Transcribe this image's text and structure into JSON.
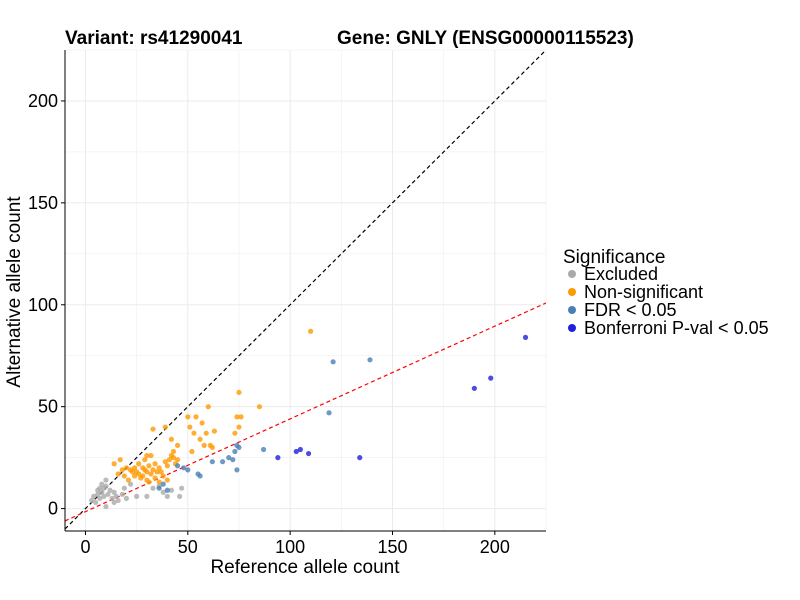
{
  "chart_data": {
    "type": "scatter",
    "title_variant": "Variant: rs41290041",
    "title_gene": "Gene: GNLY (ENSG00000115523)",
    "xlabel": "Reference allele count",
    "ylabel": "Alternative allele count",
    "xlim": [
      -10,
      225
    ],
    "ylim": [
      -11,
      225
    ],
    "xticks": [
      0,
      50,
      100,
      150,
      200
    ],
    "yticks": [
      0,
      50,
      100,
      150,
      200
    ],
    "grid": true,
    "legend_title": "Significance",
    "legend_position": "right",
    "lines": [
      {
        "name": "identity",
        "slope": 1,
        "intercept": 0,
        "color": "#000000",
        "dashed": true
      },
      {
        "name": "fit",
        "slope": 0.455,
        "intercept": -1.5,
        "color": "#ff0000",
        "dashed": true
      }
    ],
    "series": [
      {
        "name": "Excluded",
        "color": "#aaaaaa",
        "points": [
          [
            3,
            4
          ],
          [
            4,
            6
          ],
          [
            5,
            3
          ],
          [
            6,
            7
          ],
          [
            6,
            9
          ],
          [
            7,
            10
          ],
          [
            7,
            5
          ],
          [
            8,
            8
          ],
          [
            8,
            12
          ],
          [
            9,
            10
          ],
          [
            9,
            6
          ],
          [
            10,
            14
          ],
          [
            10,
            1
          ],
          [
            10,
            11
          ],
          [
            11,
            7
          ],
          [
            12,
            9
          ],
          [
            13,
            5
          ],
          [
            14,
            3
          ],
          [
            14,
            8
          ],
          [
            15,
            6
          ],
          [
            16,
            4
          ],
          [
            18,
            7
          ],
          [
            19,
            10
          ],
          [
            20,
            5
          ],
          [
            22,
            12
          ],
          [
            25,
            6
          ],
          [
            30,
            6
          ],
          [
            33,
            10
          ],
          [
            36,
            11
          ],
          [
            38,
            8
          ],
          [
            40,
            6
          ],
          [
            42,
            9
          ],
          [
            46,
            6
          ],
          [
            47,
            10
          ]
        ]
      },
      {
        "name": "Non-significant",
        "color": "#ff9900",
        "points": [
          [
            14,
            22
          ],
          [
            16,
            17
          ],
          [
            17,
            24
          ],
          [
            18,
            19
          ],
          [
            19,
            16
          ],
          [
            20,
            20
          ],
          [
            21,
            14
          ],
          [
            22,
            19
          ],
          [
            23,
            18
          ],
          [
            24,
            16
          ],
          [
            24,
            20
          ],
          [
            25,
            18
          ],
          [
            26,
            17
          ],
          [
            26,
            22
          ],
          [
            27,
            15
          ],
          [
            28,
            16
          ],
          [
            28,
            20
          ],
          [
            29,
            19
          ],
          [
            29,
            24
          ],
          [
            30,
            14
          ],
          [
            30,
            18
          ],
          [
            30,
            26
          ],
          [
            31,
            13
          ],
          [
            31,
            21
          ],
          [
            32,
            17
          ],
          [
            32,
            26
          ],
          [
            33,
            19
          ],
          [
            33,
            39
          ],
          [
            34,
            15
          ],
          [
            34,
            22
          ],
          [
            35,
            18
          ],
          [
            36,
            20
          ],
          [
            36,
            13
          ],
          [
            37,
            18
          ],
          [
            38,
            16
          ],
          [
            39,
            23
          ],
          [
            39,
            40
          ],
          [
            40,
            14
          ],
          [
            40,
            21
          ],
          [
            41,
            24
          ],
          [
            42,
            26
          ],
          [
            42,
            34
          ],
          [
            43,
            25
          ],
          [
            43,
            28
          ],
          [
            44,
            22
          ],
          [
            45,
            24
          ],
          [
            45,
            31
          ],
          [
            50,
            45
          ],
          [
            51,
            40
          ],
          [
            52,
            28
          ],
          [
            53,
            37
          ],
          [
            54,
            45
          ],
          [
            56,
            34
          ],
          [
            57,
            42
          ],
          [
            58,
            31
          ],
          [
            59,
            37
          ],
          [
            60,
            50
          ],
          [
            61,
            31
          ],
          [
            62,
            30
          ],
          [
            63,
            38
          ],
          [
            73,
            37
          ],
          [
            74,
            45
          ],
          [
            75,
            57
          ],
          [
            75,
            40
          ],
          [
            76,
            45
          ],
          [
            85,
            50
          ],
          [
            110,
            87
          ]
        ]
      },
      {
        "name": "FDR < 0.05",
        "color": "#4a7fb5",
        "points": [
          [
            36,
            10
          ],
          [
            38,
            12
          ],
          [
            40,
            9
          ],
          [
            45,
            21
          ],
          [
            48,
            20
          ],
          [
            50,
            19
          ],
          [
            55,
            17
          ],
          [
            56,
            16
          ],
          [
            62,
            23
          ],
          [
            67,
            23
          ],
          [
            70,
            25
          ],
          [
            72,
            24
          ],
          [
            73,
            28
          ],
          [
            74,
            19
          ],
          [
            74,
            31
          ],
          [
            75,
            30
          ],
          [
            87,
            29
          ],
          [
            119,
            47
          ],
          [
            121,
            72
          ],
          [
            139,
            73
          ]
        ]
      },
      {
        "name": "Bonferroni P-val < 0.05",
        "color": "#1f1fdd",
        "points": [
          [
            94,
            25
          ],
          [
            103,
            28
          ],
          [
            105,
            29
          ],
          [
            109,
            27
          ],
          [
            134,
            25
          ],
          [
            190,
            59
          ],
          [
            198,
            64
          ],
          [
            215,
            84
          ]
        ]
      }
    ]
  }
}
